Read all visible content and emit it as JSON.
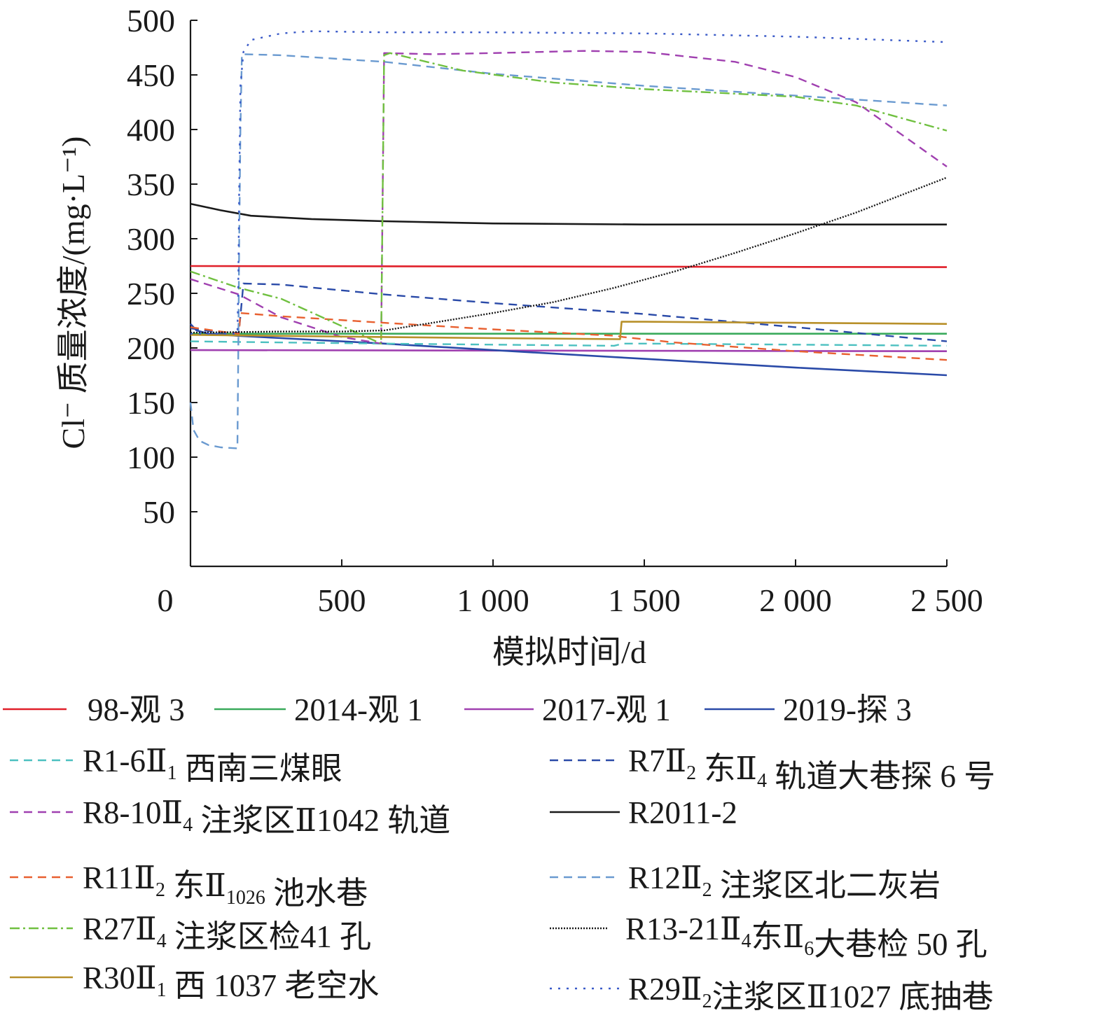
{
  "chart_data": {
    "type": "line",
    "title": "",
    "xlabel": "模拟时间/d",
    "ylabel": "Cl⁻ 质量浓度/(mg·L⁻¹)",
    "xlim": [
      0,
      2500
    ],
    "ylim": [
      0,
      500
    ],
    "x_ticks": [
      "0",
      "500",
      "1 000",
      "1 500",
      "2 000",
      "2 500"
    ],
    "x_tick_values": [
      0,
      500,
      1000,
      1500,
      2000,
      2500
    ],
    "y_ticks": [
      "50",
      "100",
      "150",
      "200",
      "250",
      "300",
      "350",
      "400",
      "450",
      "500"
    ],
    "y_tick_values": [
      50,
      100,
      150,
      200,
      250,
      300,
      350,
      400,
      450,
      500
    ],
    "grid": false,
    "legend_position": "bottom",
    "series": [
      {
        "name": "98-观 3",
        "legend": [
          {
            "t": "98-观 3"
          }
        ],
        "color": "#e0202a",
        "dash": "solid",
        "x": [
          0,
          2500
        ],
        "y": [
          275,
          274
        ]
      },
      {
        "name": "2014-观 1",
        "legend": [
          {
            "t": "2014-观 1"
          }
        ],
        "color": "#3aaa5c",
        "dash": "solid",
        "x": [
          0,
          100,
          300,
          640,
          1000,
          1500,
          2000,
          2500
        ],
        "y": [
          213,
          213,
          213,
          213,
          213,
          213,
          213,
          213
        ]
      },
      {
        "name": "2017-观 1",
        "legend": [
          {
            "t": "2017-观 1"
          }
        ],
        "color": "#a040b0",
        "dash": "solid",
        "x": [
          0,
          2500
        ],
        "y": [
          198,
          197
        ]
      },
      {
        "name": "2019-探 3",
        "legend": [
          {
            "t": "2019-探 3"
          }
        ],
        "color": "#2a4aa8",
        "dash": "solid",
        "x": [
          0,
          20,
          60,
          160,
          300,
          640,
          1000,
          1500,
          2000,
          2500
        ],
        "y": [
          222,
          216,
          213,
          211,
          209,
          204,
          198,
          190,
          182,
          175
        ]
      },
      {
        "name": "R1-6Ⅱ1西南三煤眼",
        "legend": [
          {
            "t": "R1-6"
          },
          {
            "t": "Ⅱ"
          },
          {
            "t": "1",
            "sub": true
          },
          {
            "t": " 西南三煤眼"
          }
        ],
        "color": "#4cc0c0",
        "dash": "dashed",
        "x": [
          0,
          300,
          640,
          1000,
          1400,
          1430,
          1500,
          2000,
          2500
        ],
        "y": [
          206,
          205,
          204,
          203,
          202,
          204,
          204,
          203,
          202
        ]
      },
      {
        "name": "R7Ⅱ2东Ⅱ4轨道大巷探6号",
        "legend": [
          {
            "t": "R7"
          },
          {
            "t": "Ⅱ"
          },
          {
            "t": "2",
            "sub": true
          },
          {
            "t": " 东"
          },
          {
            "t": "Ⅱ"
          },
          {
            "t": "4",
            "sub": true
          },
          {
            "t": " 轨道大巷探 6 号"
          }
        ],
        "color": "#2a4aa8",
        "dash": "dashed",
        "x": [
          0,
          100,
          160,
          175,
          300,
          640,
          1000,
          1500,
          2000,
          2500
        ],
        "y": [
          218,
          214,
          214,
          259,
          258,
          249,
          241,
          231,
          219,
          206
        ]
      },
      {
        "name": "R8-10Ⅱ4注浆区Ⅱ1042轨道",
        "legend": [
          {
            "t": "R8-10"
          },
          {
            "t": "Ⅱ"
          },
          {
            "t": "4",
            "sub": true
          },
          {
            "t": " 注浆区"
          },
          {
            "t": "Ⅱ"
          },
          {
            "t": "1042 轨道"
          }
        ],
        "color": "#a040b0",
        "dash": "dashed",
        "x": [
          0,
          160,
          300,
          500,
          630,
          640,
          800,
          1000,
          1300,
          1500,
          1800,
          2000,
          2200,
          2500
        ],
        "y": [
          263,
          249,
          228,
          210,
          204,
          470,
          469,
          470,
          472,
          471,
          462,
          448,
          425,
          366
        ]
      },
      {
        "name": "R2011-2",
        "legend": [
          {
            "t": "R2011-2"
          }
        ],
        "color": "#1a1a1a",
        "dash": "solid",
        "x": [
          0,
          100,
          200,
          400,
          640,
          1000,
          1500,
          2000,
          2500
        ],
        "y": [
          332,
          326,
          321,
          318,
          316,
          314,
          313,
          313,
          313
        ]
      },
      {
        "name": "R11Ⅱ2东Ⅱ1026池水巷",
        "legend": [
          {
            "t": "R11"
          },
          {
            "t": "Ⅱ"
          },
          {
            "t": "2",
            "sub": true
          },
          {
            "t": " 东"
          },
          {
            "t": "Ⅱ"
          },
          {
            "t": "1026",
            "sub": true
          },
          {
            "t": " 池水巷"
          }
        ],
        "color": "#e86030",
        "dash": "dashed",
        "x": [
          0,
          100,
          160,
          165,
          300,
          640,
          1000,
          1410,
          1430,
          1600,
          2000,
          2500
        ],
        "y": [
          219,
          215,
          213,
          232,
          229,
          223,
          217,
          211,
          210,
          205,
          197,
          189
        ]
      },
      {
        "name": "R12Ⅱ2注浆区北二灰岩",
        "legend": [
          {
            "t": "R12"
          },
          {
            "t": "Ⅱ"
          },
          {
            "t": "2",
            "sub": true
          },
          {
            "t": " 注浆区北二灰岩"
          }
        ],
        "color": "#6a9ad0",
        "dash": "dashed",
        "x": [
          0,
          10,
          30,
          60,
          100,
          155,
          158,
          161,
          165,
          170,
          300,
          640,
          1000,
          1500,
          2000,
          2500
        ],
        "y": [
          150,
          125,
          115,
          111,
          109,
          108,
          200,
          300,
          400,
          469,
          468,
          462,
          451,
          440,
          431,
          422
        ]
      },
      {
        "name": "R27Ⅱ4注浆区检41孔",
        "legend": [
          {
            "t": "R27"
          },
          {
            "t": "Ⅱ"
          },
          {
            "t": "4",
            "sub": true
          },
          {
            "t": " 注浆区检41 孔"
          }
        ],
        "color": "#70c040",
        "dash": "dashdot",
        "x": [
          0,
          160,
          300,
          500,
          630,
          640,
          660,
          720,
          900,
          1200,
          1500,
          2000,
          2200,
          2500
        ],
        "y": [
          270,
          255,
          245,
          220,
          204,
          468,
          470,
          466,
          454,
          443,
          437,
          430,
          422,
          399
        ]
      },
      {
        "name": "R13-21Ⅱ4东Ⅱ6大巷检50孔",
        "legend": [
          {
            "t": "R13-21"
          },
          {
            "t": "Ⅱ"
          },
          {
            "t": "4",
            "sub": true
          },
          {
            "t": "东"
          },
          {
            "t": "Ⅱ"
          },
          {
            "t": "6",
            "sub": true
          },
          {
            "t": "大巷检 50 孔"
          }
        ],
        "color": "#1a1a1a",
        "dash": "dotted",
        "x": [
          0,
          300,
          500,
          640,
          800,
          1000,
          1200,
          1400,
          1600,
          1800,
          2000,
          2200,
          2500
        ],
        "y": [
          214,
          215,
          215,
          216,
          223,
          232,
          242,
          255,
          270,
          287,
          305,
          324,
          356
        ]
      },
      {
        "name": "R30Ⅱ1西1037老空水",
        "legend": [
          {
            "t": "R30"
          },
          {
            "t": "Ⅱ"
          },
          {
            "t": "1",
            "sub": true
          },
          {
            "t": " 西 1037 老空水"
          }
        ],
        "color": "#b8902a",
        "dash": "solid",
        "x": [
          0,
          300,
          640,
          1000,
          1420,
          1425,
          1500,
          2000,
          2500
        ],
        "y": [
          212,
          211,
          210,
          209,
          208,
          224,
          224,
          223,
          222
        ]
      },
      {
        "name": "R29Ⅱ2注浆区Ⅱ1027底抽巷",
        "legend": [
          {
            "t": "R29"
          },
          {
            "t": "Ⅱ"
          },
          {
            "t": "2",
            "sub": true
          },
          {
            "t": "注浆区"
          },
          {
            "t": "Ⅱ"
          },
          {
            "t": "1027 底抽巷"
          }
        ],
        "color": "#3a5ac8",
        "dash": "dotted_loose",
        "x": [
          0,
          100,
          155,
          158,
          161,
          165,
          175,
          200,
          300,
          400,
          640,
          1000,
          1500,
          2000,
          2500
        ],
        "y": [
          213,
          213,
          213,
          260,
          350,
          440,
          471,
          482,
          488,
          490,
          489,
          489,
          488,
          485,
          480
        ]
      }
    ]
  }
}
